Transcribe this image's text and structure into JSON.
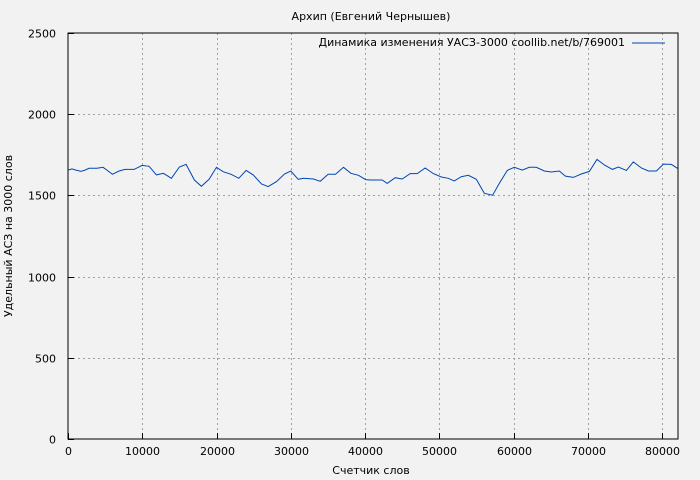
{
  "chart_data": {
    "type": "line",
    "title": "Архип (Евгений Чернышев)",
    "xlabel": "Счетчик слов",
    "ylabel": "Удельный АСЗ на 3000 слов",
    "xlim": [
      0,
      82100
    ],
    "ylim": [
      0,
      2500
    ],
    "xticks": [
      0,
      10000,
      20000,
      30000,
      40000,
      50000,
      60000,
      70000,
      80000
    ],
    "yticks": [
      0,
      500,
      1000,
      1500,
      2000,
      2500
    ],
    "grid": true,
    "legend_position": "top-right",
    "colors": {
      "line": "#0047b3",
      "background": "#f2f2f2",
      "grid": "#a0a0a0"
    },
    "series": [
      {
        "name": "Динамика изменения УАСЗ-3000 coollib.net/b/769001",
        "x": [
          0,
          540,
          1080,
          1750,
          2290,
          2830,
          3910,
          4710,
          5250,
          5970,
          6870,
          7680,
          8890,
          9970,
          10910,
          11900,
          12840,
          13920,
          15000,
          15890,
          17010,
          17960,
          18990,
          19980,
          20880,
          21950,
          22990,
          23970,
          24920,
          26040,
          26940,
          28060,
          29140,
          29990,
          30980,
          31690,
          33040,
          33940,
          35020,
          36000,
          37080,
          38070,
          39100,
          40050,
          40670,
          42290,
          42960,
          44040,
          44980,
          46060,
          47000,
          48080,
          49160,
          50240,
          51180,
          51990,
          52930,
          53870,
          54950,
          56030,
          57150,
          58050,
          59130,
          60070,
          61150,
          62090,
          63030,
          64110,
          65050,
          66130,
          66940,
          68010,
          69090,
          70170,
          71200,
          72190,
          73270,
          74070,
          75150,
          76090,
          77170,
          78110,
          79190,
          80140,
          81210,
          82020
        ],
        "y": [
          1656,
          1663,
          1656,
          1648,
          1656,
          1667,
          1667,
          1673,
          1656,
          1630,
          1650,
          1660,
          1660,
          1685,
          1679,
          1626,
          1636,
          1605,
          1675,
          1691,
          1595,
          1556,
          1599,
          1673,
          1646,
          1630,
          1605,
          1654,
          1626,
          1570,
          1554,
          1585,
          1632,
          1650,
          1599,
          1605,
          1601,
          1587,
          1630,
          1630,
          1673,
          1636,
          1624,
          1597,
          1595,
          1595,
          1574,
          1609,
          1601,
          1634,
          1634,
          1669,
          1634,
          1613,
          1605,
          1589,
          1615,
          1624,
          1599,
          1513,
          1501,
          1574,
          1654,
          1673,
          1656,
          1673,
          1673,
          1650,
          1644,
          1650,
          1619,
          1611,
          1632,
          1648,
          1722,
          1687,
          1660,
          1675,
          1654,
          1706,
          1669,
          1650,
          1650,
          1693,
          1691,
          1667
        ]
      }
    ]
  }
}
